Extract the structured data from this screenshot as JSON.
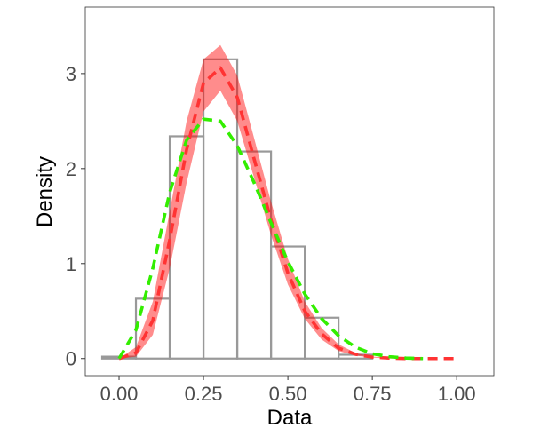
{
  "chart_data": {
    "type": "histogram",
    "title": "",
    "xlabel": "Data",
    "ylabel": "Density",
    "xlim": [
      -0.1,
      1.11
    ],
    "ylim": [
      -0.18,
      3.7
    ],
    "grid": false,
    "legend": "none",
    "x_ticks": [
      0.0,
      0.25,
      0.5,
      0.75,
      1.0
    ],
    "x_tick_labels": [
      "0.00",
      "0.25",
      "0.50",
      "0.75",
      "1.00"
    ],
    "y_ticks": [
      0,
      1,
      2,
      3
    ],
    "y_tick_labels": [
      "0",
      "1",
      "2",
      "3"
    ],
    "histogram": {
      "bins": [
        -0.05,
        0.05,
        0.15,
        0.25,
        0.35,
        0.45,
        0.55,
        0.65,
        0.75,
        0.85,
        0.95,
        1.05
      ],
      "densities": [
        0.02,
        0.63,
        2.34,
        3.15,
        2.18,
        1.18,
        0.43,
        0.04,
        0.0,
        0.0,
        0.0
      ],
      "outline_color": "#999999"
    },
    "red_fit_band": {
      "color": "#ff0000",
      "opacity": 0.45,
      "x": [
        0.0,
        0.05,
        0.1,
        0.15,
        0.2,
        0.25,
        0.3,
        0.35,
        0.4,
        0.45,
        0.5,
        0.55,
        0.6,
        0.65,
        0.7,
        0.75,
        0.8,
        0.85,
        0.9,
        0.95,
        1.0
      ],
      "lower": [
        0.0,
        0.02,
        0.25,
        0.95,
        1.85,
        2.6,
        2.82,
        2.5,
        1.9,
        1.3,
        0.78,
        0.42,
        0.2,
        0.08,
        0.03,
        0.01,
        0.0,
        0.0,
        0.0,
        0.0,
        0.0
      ],
      "upper": [
        0.0,
        0.12,
        0.6,
        1.55,
        2.5,
        3.15,
        3.3,
        2.98,
        2.32,
        1.65,
        1.05,
        0.6,
        0.32,
        0.15,
        0.06,
        0.02,
        0.01,
        0.0,
        0.0,
        0.0,
        0.0
      ]
    },
    "series": [
      {
        "color": "#ff3333",
        "dash": true,
        "x": [
          0.0,
          0.05,
          0.1,
          0.15,
          0.2,
          0.25,
          0.3,
          0.35,
          0.4,
          0.45,
          0.5,
          0.55,
          0.6,
          0.65,
          0.7,
          0.75,
          0.8,
          0.85,
          0.9,
          0.95,
          1.0
        ],
        "y": [
          0.0,
          0.06,
          0.4,
          1.25,
          2.2,
          2.9,
          3.06,
          2.75,
          2.1,
          1.46,
          0.9,
          0.5,
          0.26,
          0.11,
          0.045,
          0.015,
          0.005,
          0.0,
          0.0,
          0.0,
          0.0
        ]
      },
      {
        "color": "#33ee00",
        "dash": true,
        "x": [
          0.0,
          0.05,
          0.1,
          0.15,
          0.2,
          0.25,
          0.3,
          0.35,
          0.4,
          0.45,
          0.5,
          0.55,
          0.6,
          0.65,
          0.7,
          0.75,
          0.8,
          0.85,
          0.9
        ],
        "y": [
          0.0,
          0.3,
          0.95,
          1.75,
          2.3,
          2.52,
          2.5,
          2.24,
          1.85,
          1.43,
          1.02,
          0.68,
          0.42,
          0.24,
          0.12,
          0.05,
          0.02,
          0.005,
          0.0
        ]
      }
    ]
  }
}
